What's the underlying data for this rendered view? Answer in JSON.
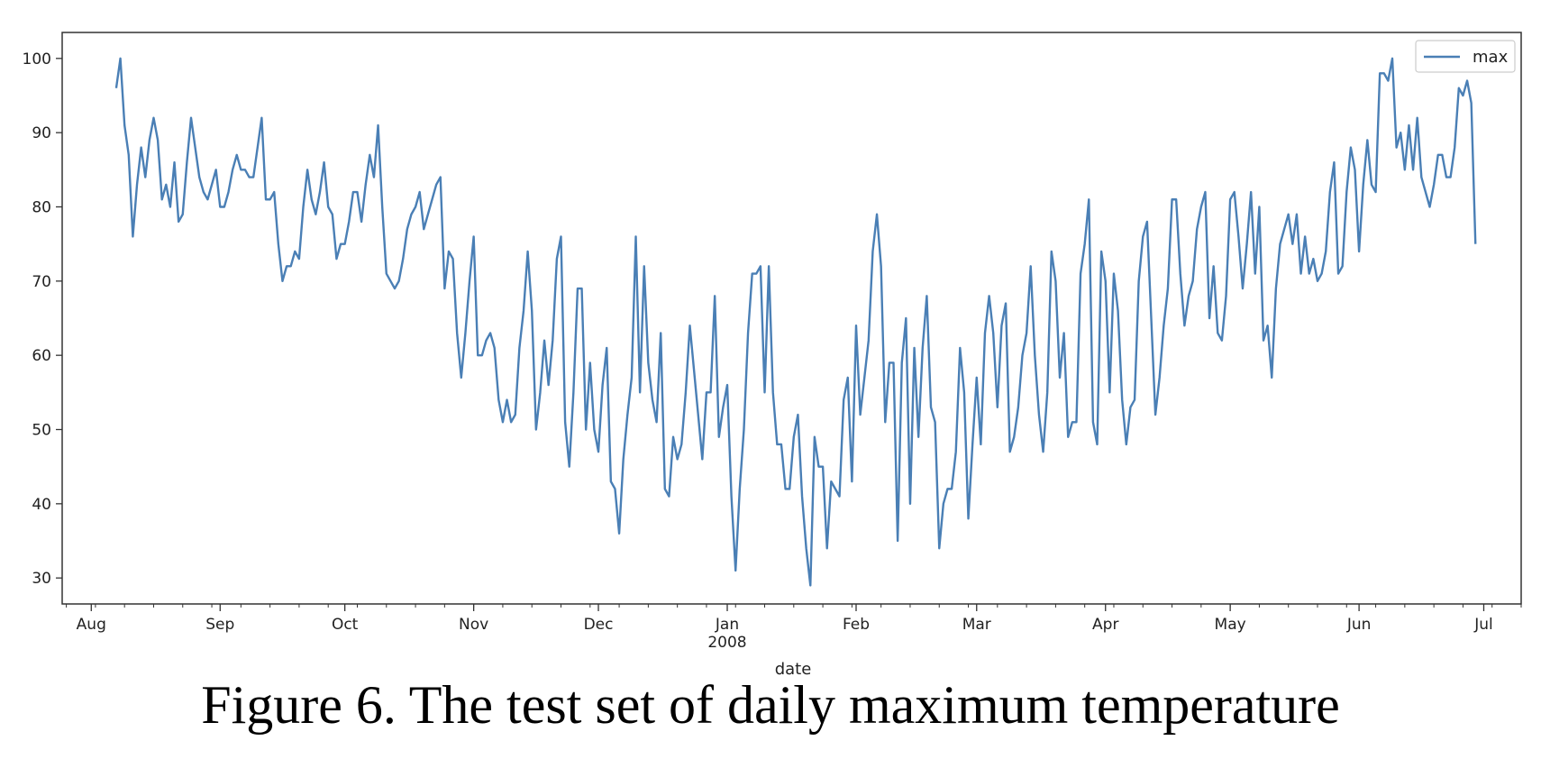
{
  "caption": "Figure 6. The test set of daily maximum temperature",
  "chart_data": {
    "type": "line",
    "title": "",
    "xlabel": "date",
    "ylabel": "",
    "x_start": "2007-08-07",
    "x_end": "2008-06-30",
    "xlim": [
      "2007-07-25",
      "2008-07-10"
    ],
    "ylim": [
      26.5,
      103.5
    ],
    "yticks": [
      30,
      40,
      50,
      60,
      70,
      80,
      90,
      100
    ],
    "xticks": [
      {
        "date": "2007-08-01",
        "label": "Aug"
      },
      {
        "date": "2007-09-01",
        "label": "Sep"
      },
      {
        "date": "2007-10-01",
        "label": "Oct"
      },
      {
        "date": "2007-11-01",
        "label": "Nov"
      },
      {
        "date": "2007-12-01",
        "label": "Dec"
      },
      {
        "date": "2008-01-01",
        "label": "Jan",
        "sublabel": "2008"
      },
      {
        "date": "2008-02-01",
        "label": "Feb"
      },
      {
        "date": "2008-03-01",
        "label": "Mar"
      },
      {
        "date": "2008-04-01",
        "label": "Apr"
      },
      {
        "date": "2008-05-01",
        "label": "May"
      },
      {
        "date": "2008-06-01",
        "label": "Jun"
      },
      {
        "date": "2008-07-01",
        "label": "Jul"
      }
    ],
    "grid": false,
    "legend_position": "top-right",
    "series": [
      {
        "name": "max",
        "color": "#4a7fb5",
        "values": [
          96,
          100,
          91,
          87,
          76,
          83,
          88,
          84,
          89,
          92,
          89,
          81,
          83,
          80,
          86,
          78,
          79,
          86,
          92,
          88,
          84,
          82,
          81,
          83,
          85,
          80,
          80,
          82,
          85,
          87,
          85,
          85,
          84,
          84,
          88,
          92,
          81,
          81,
          82,
          75,
          70,
          72,
          72,
          74,
          73,
          80,
          85,
          81,
          79,
          82,
          86,
          80,
          79,
          73,
          75,
          75,
          78,
          82,
          82,
          78,
          83,
          87,
          84,
          91,
          80,
          71,
          70,
          69,
          70,
          73,
          77,
          79,
          80,
          82,
          77,
          79,
          81,
          83,
          84,
          69,
          74,
          73,
          63,
          57,
          63,
          70,
          76,
          60,
          60,
          62,
          63,
          61,
          54,
          51,
          54,
          51,
          52,
          61,
          66,
          74,
          66,
          50,
          55,
          62,
          56,
          62,
          73,
          76,
          51,
          45,
          55,
          69,
          69,
          50,
          59,
          50,
          47,
          56,
          61,
          43,
          42,
          36,
          46,
          52,
          57,
          76,
          55,
          72,
          59,
          54,
          51,
          63,
          42,
          41,
          49,
          46,
          48,
          55,
          64,
          58,
          52,
          46,
          55,
          55,
          68,
          49,
          53,
          56,
          41,
          31,
          42,
          50,
          63,
          71,
          71,
          72,
          55,
          72,
          55,
          48,
          48,
          42,
          42,
          49,
          52,
          41,
          34,
          29,
          49,
          45,
          45,
          34,
          43,
          42,
          41,
          54,
          57,
          43,
          64,
          52,
          57,
          62,
          74,
          79,
          72,
          51,
          59,
          59,
          35,
          59,
          65,
          40,
          61,
          49,
          61,
          68,
          53,
          51,
          34,
          40,
          42,
          42,
          47,
          61,
          55,
          38,
          48,
          57,
          48,
          63,
          68,
          63,
          53,
          64,
          67,
          47,
          49,
          53,
          60,
          63,
          72,
          60,
          52,
          47,
          55,
          74,
          70,
          57,
          63,
          49,
          51,
          51,
          71,
          75,
          81,
          51,
          48,
          74,
          70,
          55,
          71,
          66,
          54,
          48,
          53,
          54,
          70,
          76,
          78,
          65,
          52,
          57,
          64,
          69,
          81,
          81,
          71,
          64,
          68,
          70,
          77,
          80,
          82,
          65,
          72,
          63,
          62,
          68,
          81,
          82,
          76,
          69,
          75,
          82,
          71,
          80,
          62,
          64,
          57,
          69,
          75,
          77,
          79,
          75,
          79,
          71,
          76,
          71,
          73,
          70,
          71,
          74,
          82,
          86,
          71,
          72,
          82,
          88,
          85,
          74,
          83,
          89,
          83,
          82,
          98,
          98,
          97,
          100,
          88,
          90,
          85,
          91,
          85,
          92,
          84,
          82,
          80,
          83,
          87,
          87,
          84,
          84,
          88,
          96,
          95,
          97,
          94,
          75
        ]
      }
    ]
  }
}
